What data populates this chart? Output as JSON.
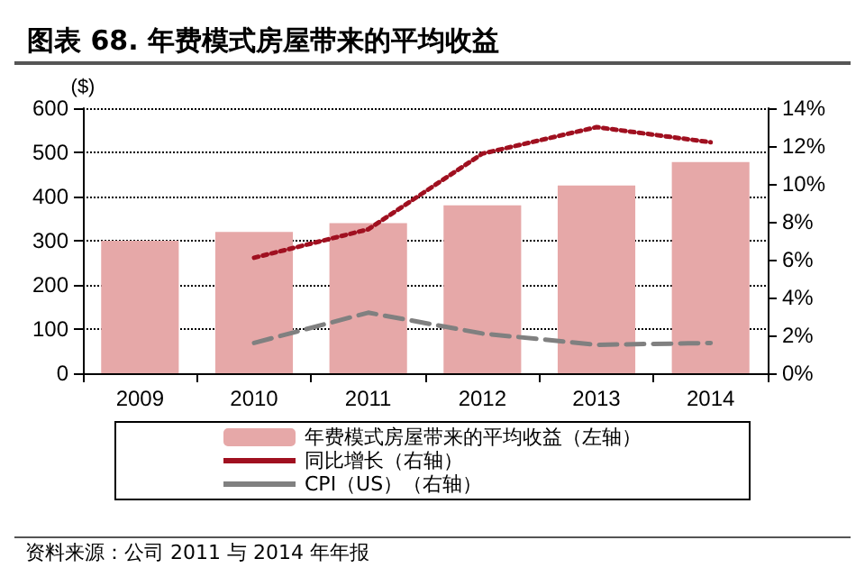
{
  "chart_data": {
    "type": "bar",
    "title": "图表 68. 年费模式房屋带来的平均收益",
    "ylabel": "($)",
    "categories": [
      "2009",
      "2010",
      "2011",
      "2012",
      "2013",
      "2014"
    ],
    "series": [
      {
        "name": "年费模式房屋带来的平均收益（左轴）",
        "color": "#e6a8a8",
        "values": [
          300,
          320,
          340,
          380,
          425,
          478
        ]
      },
      {
        "name": "同比增长（右轴）",
        "type": "line",
        "axis": "y2",
        "line_style": "dotted",
        "color": "#a01020",
        "values": [
          null,
          6.1,
          7.6,
          11.6,
          13.0,
          12.2
        ]
      },
      {
        "name": "CPI（US）（右轴）",
        "type": "line",
        "axis": "y2",
        "line_style": "dashed",
        "color": "#808080",
        "values": [
          null,
          1.6,
          3.2,
          2.1,
          1.5,
          1.6
        ]
      }
    ],
    "ylim": [
      0,
      600
    ],
    "yticks": [
      0,
      100,
      200,
      300,
      400,
      500,
      600
    ],
    "y2lim": [
      0,
      14
    ],
    "y2ticks": [
      {
        "value": 0,
        "label": "0%"
      },
      {
        "value": 2,
        "label": "2%"
      },
      {
        "value": 4,
        "label": "4%"
      },
      {
        "value": 6,
        "label": "6%"
      },
      {
        "value": 8,
        "label": "8%"
      },
      {
        "value": 10,
        "label": "10%"
      },
      {
        "value": 12,
        "label": "12%"
      },
      {
        "value": 14,
        "label": "14%"
      }
    ],
    "grid": "y",
    "legend": "bottom",
    "marker": "none",
    "annotations": [
      "资料来源：公司 2011 与 2014 年年报"
    ]
  }
}
